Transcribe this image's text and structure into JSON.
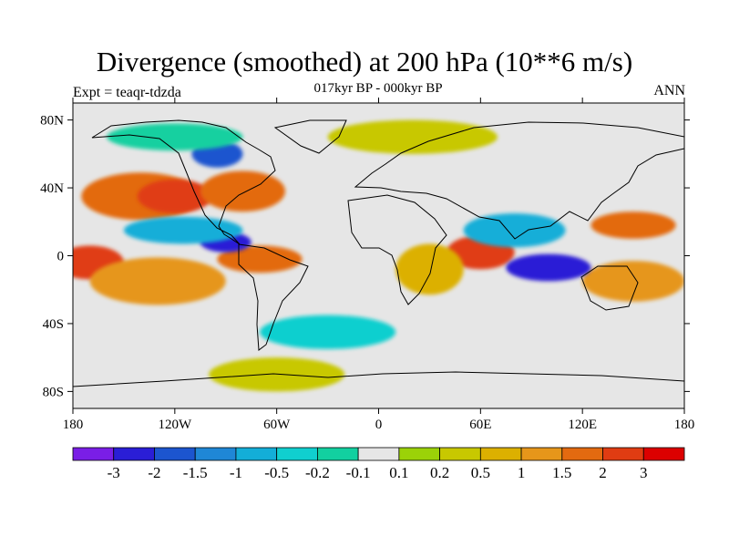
{
  "chart_data": {
    "type": "heatmap",
    "title": "Divergence (smoothed) at 200 hPa (10**6 m/s)",
    "subtitle": "017kyr BP - 000kyr BP",
    "left_label": "Expt = teaqr-tdzda",
    "right_label": "ANN",
    "xlim": [
      -180,
      180
    ],
    "ylim": [
      -90,
      90
    ],
    "x_ticks": [
      {
        "value": -180,
        "label": "180"
      },
      {
        "value": -120,
        "label": "120W"
      },
      {
        "value": -60,
        "label": "60W"
      },
      {
        "value": 0,
        "label": "0"
      },
      {
        "value": 60,
        "label": "60E"
      },
      {
        "value": 120,
        "label": "120E"
      },
      {
        "value": 180,
        "label": "180"
      }
    ],
    "y_ticks": [
      {
        "value": 80,
        "label": "80N"
      },
      {
        "value": 40,
        "label": "40N"
      },
      {
        "value": 0,
        "label": "0"
      },
      {
        "value": -40,
        "label": "40S"
      },
      {
        "value": -80,
        "label": "80S"
      }
    ],
    "colorbar": {
      "levels": [
        "-3",
        "-2",
        "-1.5",
        "-1",
        "-0.5",
        "-0.2",
        "-0.1",
        "0.1",
        "0.2",
        "0.5",
        "1",
        "1.5",
        "2",
        "3"
      ],
      "colors": [
        "#7a1ee6",
        "#2a1ed6",
        "#1c55cf",
        "#1f87d6",
        "#13aed8",
        "#10cfcf",
        "#12d0a0",
        "#e6e6e6",
        "#9bd208",
        "#c8c800",
        "#dcb000",
        "#e6961a",
        "#e36a10",
        "#e03c12",
        "#dc0000"
      ]
    },
    "blobs": [
      {
        "lon": -140,
        "lat": 35,
        "rx": 35,
        "ry": 14,
        "level": 12
      },
      {
        "lon": -120,
        "lat": 35,
        "rx": 22,
        "ry": 10,
        "level": 13
      },
      {
        "lon": -80,
        "lat": 38,
        "rx": 25,
        "ry": 12,
        "level": 12
      },
      {
        "lon": -170,
        "lat": -4,
        "rx": 20,
        "ry": 10,
        "level": 13
      },
      {
        "lon": -130,
        "lat": -15,
        "rx": 40,
        "ry": 14,
        "level": 11
      },
      {
        "lon": -70,
        "lat": -2,
        "rx": 25,
        "ry": 8,
        "level": 12
      },
      {
        "lon": 60,
        "lat": 2,
        "rx": 20,
        "ry": 10,
        "level": 13
      },
      {
        "lon": 30,
        "lat": -8,
        "rx": 20,
        "ry": 15,
        "level": 10
      },
      {
        "lon": 150,
        "lat": 18,
        "rx": 25,
        "ry": 8,
        "level": 12
      },
      {
        "lon": 150,
        "lat": -15,
        "rx": 30,
        "ry": 12,
        "level": 11
      },
      {
        "lon": -90,
        "lat": 8,
        "rx": 15,
        "ry": 6,
        "level": 1
      },
      {
        "lon": 100,
        "lat": -7,
        "rx": 25,
        "ry": 8,
        "level": 1
      },
      {
        "lon": -115,
        "lat": 15,
        "rx": 35,
        "ry": 8,
        "level": 4
      },
      {
        "lon": 80,
        "lat": 15,
        "rx": 30,
        "ry": 10,
        "level": 4
      },
      {
        "lon": -30,
        "lat": -45,
        "rx": 40,
        "ry": 10,
        "level": 5
      },
      {
        "lon": -95,
        "lat": 60,
        "rx": 15,
        "ry": 8,
        "level": 2
      },
      {
        "lon": -120,
        "lat": 70,
        "rx": 40,
        "ry": 8,
        "level": 6
      },
      {
        "lon": 20,
        "lat": 70,
        "rx": 50,
        "ry": 10,
        "level": 9
      },
      {
        "lon": -60,
        "lat": -70,
        "rx": 40,
        "ry": 10,
        "level": 9
      }
    ]
  }
}
